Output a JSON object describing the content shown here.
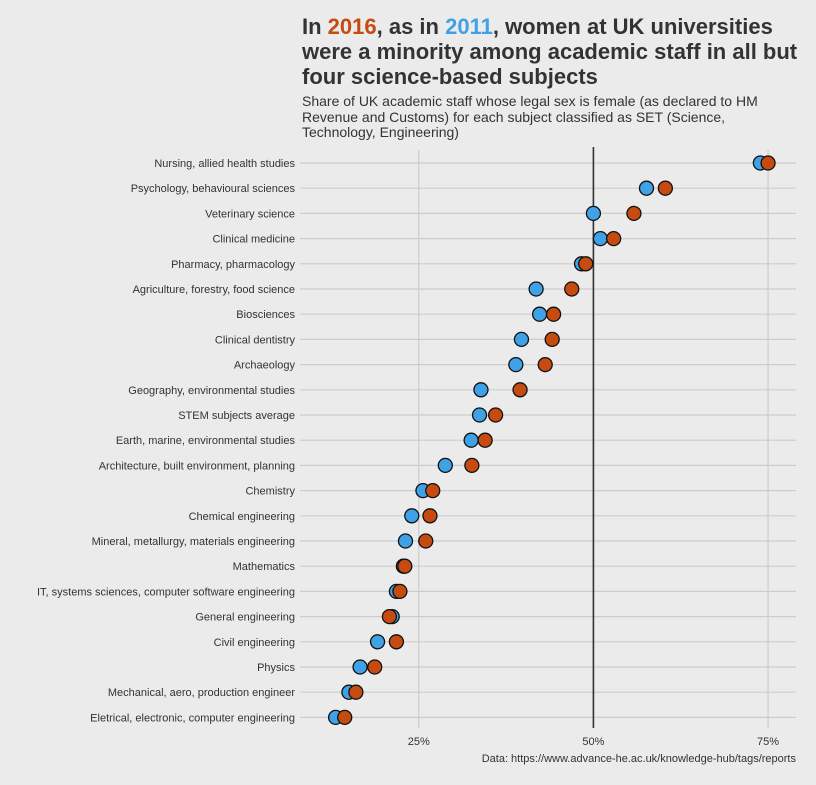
{
  "title": {
    "part1": "In ",
    "year_a": "2016",
    "part2": ", as in ",
    "year_b": "2011",
    "part3": ", women at UK universities were a minority among academic staff in all but four science-based subjects"
  },
  "subtitle": "Share of UK academic staff whose legal sex is female (as declared to HM Revenue and Customs) for each subject classified as SET (Science, Technology, Engineering)",
  "caption": "Data: https://www.advance-he.ac.uk/knowledge-hub/tags/reports",
  "colors": {
    "y2011": "#3fa2e6",
    "y2016": "#c54b11",
    "background": "#ebebeb",
    "grid": "#cccccc",
    "reference_line": "#333333"
  },
  "chart_data": {
    "type": "scatter",
    "subtype": "dumbbell-dot",
    "x_range": [
      8,
      79
    ],
    "x_ticks": [
      25,
      50,
      75
    ],
    "x_tick_labels": [
      "25%",
      "50%",
      "75%"
    ],
    "reference_line": 50,
    "grid": true,
    "categories": [
      "Nursing, allied health studies",
      "Psychology, behavioural sciences",
      "Veterinary science",
      "Clinical medicine",
      "Pharmacy, pharmacology",
      "Agriculture, forestry, food science",
      "Biosciences",
      "Clinical dentistry",
      "Archaeology",
      "Geography, environmental studies",
      "STEM subjects average",
      "Earth, marine, environmental studies",
      "Architecture, built environment, planning",
      "Chemistry",
      "Chemical engineering",
      "Mineral, metallurgy, materials engineering",
      "Mathematics",
      "IT, systems sciences, computer software engineering",
      "General engineering",
      "Civil engineering",
      "Physics",
      "Mechanical, aero, production engineer",
      "Eletrical, electronic, computer engineering"
    ],
    "series": [
      {
        "year": "2011",
        "values": [
          73.9,
          57.6,
          50.0,
          51.0,
          48.3,
          41.8,
          42.3,
          39.7,
          38.9,
          33.9,
          33.7,
          32.5,
          28.8,
          25.6,
          24.0,
          23.1,
          22.8,
          21.8,
          21.2,
          19.1,
          16.6,
          15.0,
          13.1
        ]
      },
      {
        "year": "2016",
        "values": [
          75.0,
          60.3,
          55.8,
          52.9,
          48.9,
          46.9,
          44.3,
          44.1,
          43.1,
          39.5,
          36.0,
          34.5,
          32.6,
          27.0,
          26.6,
          26.0,
          23.0,
          22.3,
          20.8,
          21.8,
          18.7,
          16.0,
          14.4
        ]
      }
    ]
  }
}
